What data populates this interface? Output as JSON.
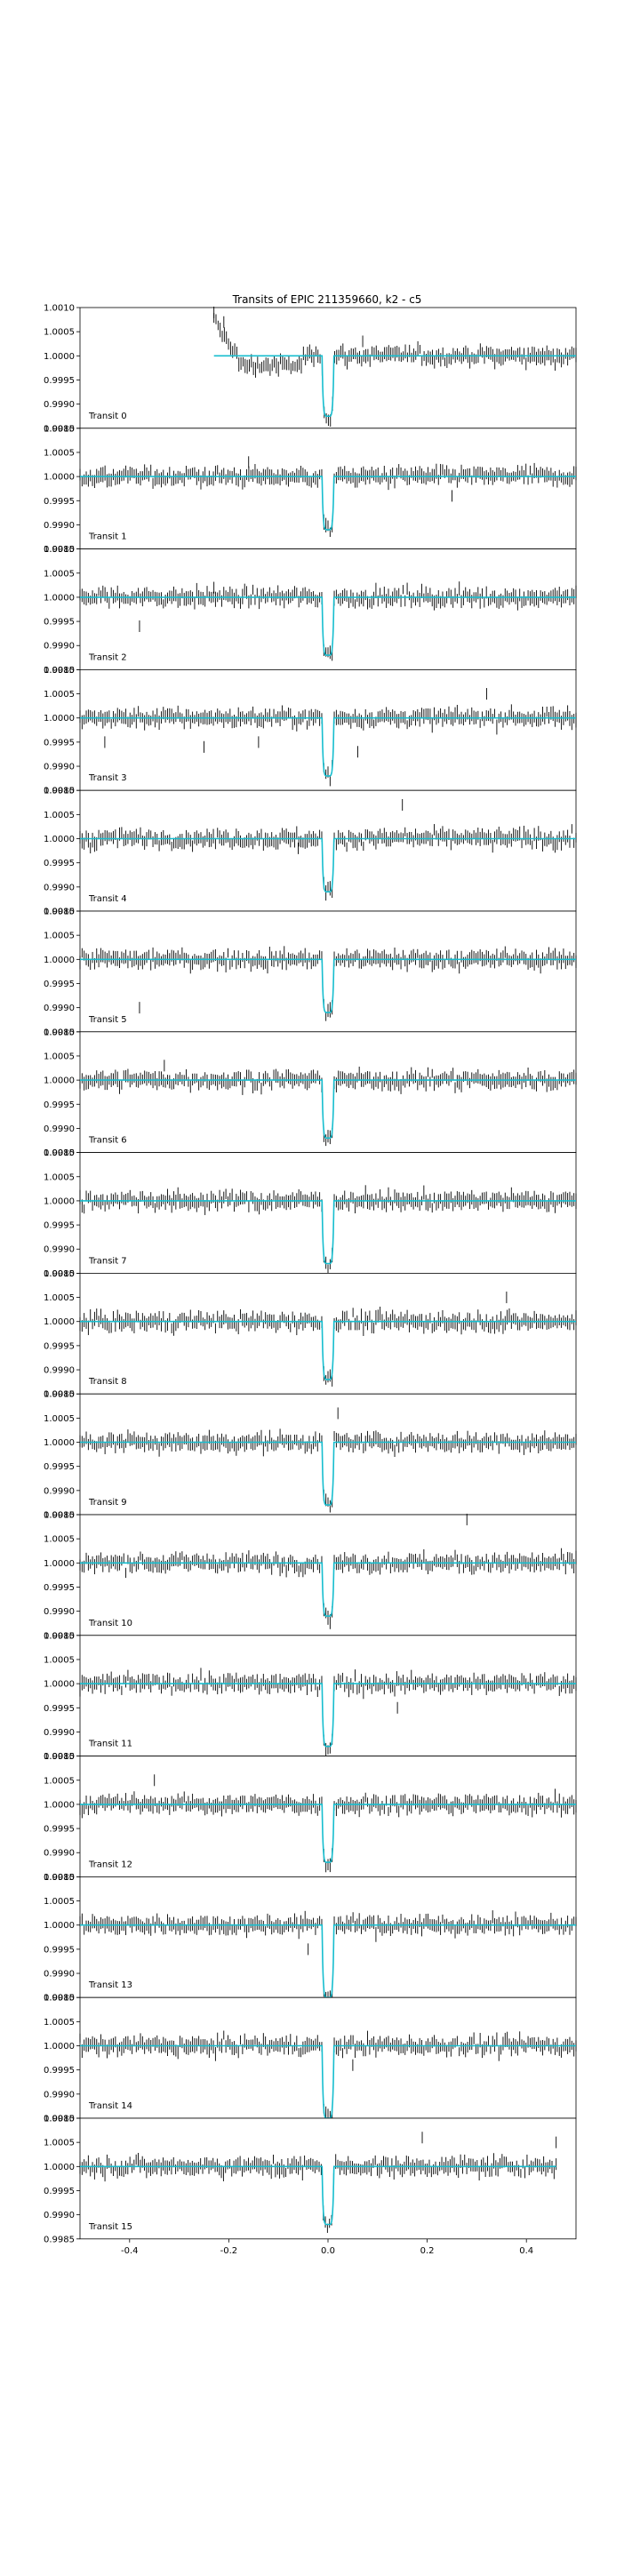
{
  "chart_data": {
    "type": "line",
    "title": "Transits of EPIC 211359660, k2 - c5",
    "xlabel": "",
    "ylabel": "",
    "xlim": [
      -0.5,
      0.5
    ],
    "ylim": [
      0.9985,
      1.001
    ],
    "xticks": [
      "-0.4",
      "-0.2",
      "0.0",
      "0.2",
      "0.4"
    ],
    "yticks": [
      "0.9985",
      "0.9990",
      "0.9995",
      "1.0000",
      "1.0005",
      "1.0010"
    ],
    "grid": false,
    "data_style": "black vertical error bars around flux values",
    "model_color": "#17becf",
    "data_color": "#000000",
    "model": {
      "baseline": 1.0,
      "transit_center": 0.0,
      "ingress_start": -0.012,
      "egress_end": 0.012,
      "depth_minimum": 0.99885
    },
    "panels": [
      {
        "label": "Transit 0",
        "data_xlim": [
          -0.23,
          0.5
        ],
        "flux_min": 0.99875,
        "outliers": [
          {
            "x": -0.23,
            "y": 1.0009
          },
          {
            "x": -0.21,
            "y": 1.0007
          },
          {
            "x": 0.07,
            "y": 1.0003
          }
        ]
      },
      {
        "label": "Transit 1",
        "data_xlim": [
          -0.5,
          0.5
        ],
        "flux_min": 0.9989,
        "outliers": [
          {
            "x": -0.16,
            "y": 1.0003
          },
          {
            "x": 0.25,
            "y": 0.9996
          }
        ]
      },
      {
        "label": "Transit 2",
        "data_xlim": [
          -0.5,
          0.5
        ],
        "flux_min": 0.9988,
        "outliers": [
          {
            "x": -0.38,
            "y": 0.9994
          },
          {
            "x": -0.23,
            "y": 1.0002
          }
        ]
      },
      {
        "label": "Transit 3",
        "data_xlim": [
          -0.5,
          0.5
        ],
        "flux_min": 0.9988,
        "outliers": [
          {
            "x": -0.45,
            "y": 0.9995
          },
          {
            "x": -0.25,
            "y": 0.9994
          },
          {
            "x": -0.14,
            "y": 0.9995
          },
          {
            "x": 0.06,
            "y": 0.9993
          },
          {
            "x": 0.32,
            "y": 1.0005
          }
        ]
      },
      {
        "label": "Transit 4",
        "data_xlim": [
          -0.5,
          0.5
        ],
        "flux_min": 0.9989,
        "outliers": [
          {
            "x": -0.06,
            "y": 0.9998
          },
          {
            "x": 0.15,
            "y": 1.0007
          }
        ]
      },
      {
        "label": "Transit 5",
        "data_xlim": [
          -0.5,
          0.5
        ],
        "flux_min": 0.9989,
        "outliers": [
          {
            "x": -0.38,
            "y": 0.999
          }
        ]
      },
      {
        "label": "Transit 6",
        "data_xlim": [
          -0.5,
          0.5
        ],
        "flux_min": 0.9988,
        "outliers": [
          {
            "x": -0.33,
            "y": 1.0003
          }
        ]
      },
      {
        "label": "Transit 7",
        "data_xlim": [
          -0.5,
          0.5
        ],
        "flux_min": 0.9987,
        "outliers": []
      },
      {
        "label": "Transit 8",
        "data_xlim": [
          -0.5,
          0.5
        ],
        "flux_min": 0.9988,
        "outliers": [
          {
            "x": 0.36,
            "y": 1.0005
          }
        ]
      },
      {
        "label": "Transit 9",
        "data_xlim": [
          -0.5,
          0.5
        ],
        "flux_min": 0.9987,
        "outliers": [
          {
            "x": 0.02,
            "y": 1.0006
          }
        ]
      },
      {
        "label": "Transit 10",
        "data_xlim": [
          -0.5,
          0.5
        ],
        "flux_min": 0.9989,
        "outliers": [
          {
            "x": 0.28,
            "y": 1.0009
          }
        ]
      },
      {
        "label": "Transit 11",
        "data_xlim": [
          -0.5,
          0.5
        ],
        "flux_min": 0.9987,
        "outliers": [
          {
            "x": 0.14,
            "y": 0.9995
          }
        ]
      },
      {
        "label": "Transit 12",
        "data_xlim": [
          -0.5,
          0.5
        ],
        "flux_min": 0.9988,
        "outliers": [
          {
            "x": -0.35,
            "y": 1.0005
          }
        ]
      },
      {
        "label": "Transit 13",
        "data_xlim": [
          -0.5,
          0.5
        ],
        "flux_min": 0.9985,
        "outliers": [
          {
            "x": -0.04,
            "y": 0.9995
          }
        ]
      },
      {
        "label": "Transit 14",
        "data_xlim": [
          -0.5,
          0.5
        ],
        "flux_min": 0.9985,
        "outliers": [
          {
            "x": 0.05,
            "y": 0.9996
          }
        ]
      },
      {
        "label": "Transit 15",
        "data_xlim": [
          -0.5,
          0.46
        ],
        "flux_min": 0.9988,
        "outliers": [
          {
            "x": 0.19,
            "y": 1.0006
          },
          {
            "x": 0.46,
            "y": 1.0005
          }
        ]
      }
    ]
  }
}
